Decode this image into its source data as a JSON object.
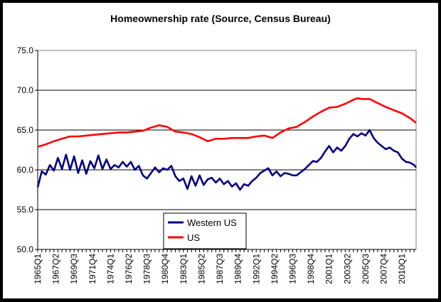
{
  "chart_data": {
    "type": "line",
    "title": "Homeownership rate (Source, Census Bureau)",
    "xlabel": "",
    "ylabel": "",
    "ylim": [
      50,
      75
    ],
    "y_ticks": [
      "50.0",
      "55.0",
      "60.0",
      "65.0",
      "70.0",
      "75.0"
    ],
    "grid": "horizontal major gridlines",
    "legend_position": "lower-left (inside plot)",
    "x_tick_labels": [
      "1965Q1",
      "1967Q2",
      "1969Q3",
      "1971Q4",
      "1974Q1",
      "1976Q2",
      "1978Q3",
      "1980Q4",
      "1983Q1",
      "1985Q2",
      "1987Q3",
      "1989Q4",
      "1992Q1",
      "1994Q2",
      "1996Q3",
      "1998Q4",
      "2001Q1",
      "2003Q2",
      "2005Q3",
      "2007Q4",
      "2010Q1"
    ],
    "x_start": "1965Q1",
    "x_end": "2011Q4",
    "series": [
      {
        "name": "Western US",
        "color": "#000080",
        "points": [
          [
            "1965Q1",
            57.8
          ],
          [
            "1965Q3",
            59.8
          ],
          [
            "1966Q1",
            59.4
          ],
          [
            "1966Q3",
            60.6
          ],
          [
            "1967Q1",
            59.9
          ],
          [
            "1967Q3",
            61.5
          ],
          [
            "1968Q1",
            60.1
          ],
          [
            "1968Q3",
            61.9
          ],
          [
            "1969Q1",
            60.0
          ],
          [
            "1969Q3",
            61.7
          ],
          [
            "1970Q1",
            59.6
          ],
          [
            "1970Q3",
            61.2
          ],
          [
            "1971Q1",
            59.5
          ],
          [
            "1971Q3",
            61.1
          ],
          [
            "1972Q1",
            60.2
          ],
          [
            "1972Q3",
            61.8
          ],
          [
            "1973Q1",
            60.1
          ],
          [
            "1973Q3",
            61.3
          ],
          [
            "1974Q1",
            60.1
          ],
          [
            "1974Q3",
            60.6
          ],
          [
            "1975Q1",
            60.3
          ],
          [
            "1975Q3",
            61.0
          ],
          [
            "1976Q1",
            60.4
          ],
          [
            "1976Q3",
            61.0
          ],
          [
            "1977Q1",
            60.0
          ],
          [
            "1977Q3",
            60.5
          ],
          [
            "1978Q1",
            59.3
          ],
          [
            "1978Q3",
            58.9
          ],
          [
            "1979Q1",
            59.6
          ],
          [
            "1979Q3",
            60.3
          ],
          [
            "1980Q1",
            59.7
          ],
          [
            "1980Q3",
            60.2
          ],
          [
            "1981Q1",
            60.0
          ],
          [
            "1981Q3",
            60.5
          ],
          [
            "1982Q1",
            59.2
          ],
          [
            "1982Q3",
            58.6
          ],
          [
            "1983Q1",
            58.9
          ],
          [
            "1983Q3",
            57.6
          ],
          [
            "1984Q1",
            59.2
          ],
          [
            "1984Q3",
            58.0
          ],
          [
            "1985Q1",
            59.3
          ],
          [
            "1985Q3",
            58.1
          ],
          [
            "1986Q1",
            58.8
          ],
          [
            "1986Q3",
            59.0
          ],
          [
            "1987Q1",
            58.4
          ],
          [
            "1987Q3",
            58.9
          ],
          [
            "1988Q1",
            58.2
          ],
          [
            "1988Q3",
            58.6
          ],
          [
            "1989Q1",
            57.9
          ],
          [
            "1989Q3",
            58.3
          ],
          [
            "1990Q1",
            57.5
          ],
          [
            "1990Q3",
            58.2
          ],
          [
            "1991Q1",
            58.0
          ],
          [
            "1991Q3",
            58.6
          ],
          [
            "1992Q1",
            59.0
          ],
          [
            "1992Q3",
            59.6
          ],
          [
            "1993Q1",
            59.9
          ],
          [
            "1993Q3",
            60.2
          ],
          [
            "1994Q1",
            59.3
          ],
          [
            "1994Q3",
            59.8
          ],
          [
            "1995Q1",
            59.2
          ],
          [
            "1995Q3",
            59.6
          ],
          [
            "1996Q1",
            59.5
          ],
          [
            "1996Q3",
            59.3
          ],
          [
            "1997Q1",
            59.3
          ],
          [
            "1997Q3",
            59.7
          ],
          [
            "1998Q1",
            60.1
          ],
          [
            "1998Q3",
            60.6
          ],
          [
            "1999Q1",
            61.1
          ],
          [
            "1999Q3",
            61.0
          ],
          [
            "2000Q1",
            61.5
          ],
          [
            "2000Q3",
            62.3
          ],
          [
            "2001Q1",
            63.0
          ],
          [
            "2001Q3",
            62.2
          ],
          [
            "2002Q1",
            62.8
          ],
          [
            "2002Q3",
            62.4
          ],
          [
            "2003Q1",
            63.0
          ],
          [
            "2003Q3",
            63.9
          ],
          [
            "2004Q1",
            64.5
          ],
          [
            "2004Q3",
            64.2
          ],
          [
            "2005Q1",
            64.6
          ],
          [
            "2005Q3",
            64.3
          ],
          [
            "2006Q1",
            65.0
          ],
          [
            "2006Q3",
            64.0
          ],
          [
            "2007Q1",
            63.4
          ],
          [
            "2007Q3",
            63.0
          ],
          [
            "2008Q1",
            62.6
          ],
          [
            "2008Q3",
            62.8
          ],
          [
            "2009Q1",
            62.4
          ],
          [
            "2009Q3",
            62.2
          ],
          [
            "2010Q1",
            61.4
          ],
          [
            "2010Q3",
            61.0
          ],
          [
            "2011Q1",
            60.9
          ],
          [
            "2011Q3",
            60.6
          ],
          [
            "2011Q4",
            60.3
          ]
        ]
      },
      {
        "name": "US",
        "color": "#ff0000",
        "points": [
          [
            "1965Q1",
            62.9
          ],
          [
            "1966Q1",
            63.2
          ],
          [
            "1967Q1",
            63.6
          ],
          [
            "1968Q1",
            63.9
          ],
          [
            "1969Q1",
            64.2
          ],
          [
            "1970Q1",
            64.2
          ],
          [
            "1971Q1",
            64.3
          ],
          [
            "1972Q1",
            64.4
          ],
          [
            "1973Q1",
            64.5
          ],
          [
            "1974Q1",
            64.6
          ],
          [
            "1975Q1",
            64.7
          ],
          [
            "1976Q1",
            64.7
          ],
          [
            "1977Q1",
            64.8
          ],
          [
            "1978Q1",
            64.9
          ],
          [
            "1979Q1",
            65.3
          ],
          [
            "1980Q1",
            65.6
          ],
          [
            "1980Q3",
            65.5
          ],
          [
            "1981Q1",
            65.4
          ],
          [
            "1982Q1",
            64.8
          ],
          [
            "1983Q1",
            64.7
          ],
          [
            "1984Q1",
            64.5
          ],
          [
            "1985Q1",
            64.1
          ],
          [
            "1986Q1",
            63.6
          ],
          [
            "1987Q1",
            63.9
          ],
          [
            "1988Q1",
            63.9
          ],
          [
            "1989Q1",
            64.0
          ],
          [
            "1990Q1",
            64.0
          ],
          [
            "1991Q1",
            64.0
          ],
          [
            "1992Q1",
            64.2
          ],
          [
            "1993Q1",
            64.3
          ],
          [
            "1994Q1",
            64.0
          ],
          [
            "1995Q1",
            64.7
          ],
          [
            "1996Q1",
            65.2
          ],
          [
            "1997Q1",
            65.4
          ],
          [
            "1998Q1",
            66.0
          ],
          [
            "1999Q1",
            66.7
          ],
          [
            "2000Q1",
            67.3
          ],
          [
            "2001Q1",
            67.8
          ],
          [
            "2002Q1",
            67.9
          ],
          [
            "2003Q1",
            68.3
          ],
          [
            "2004Q1",
            68.8
          ],
          [
            "2004Q3",
            69.0
          ],
          [
            "2005Q1",
            68.9
          ],
          [
            "2006Q1",
            68.9
          ],
          [
            "2007Q1",
            68.4
          ],
          [
            "2008Q1",
            67.9
          ],
          [
            "2009Q1",
            67.5
          ],
          [
            "2010Q1",
            67.1
          ],
          [
            "2011Q1",
            66.5
          ],
          [
            "2011Q4",
            65.9
          ]
        ]
      }
    ]
  }
}
